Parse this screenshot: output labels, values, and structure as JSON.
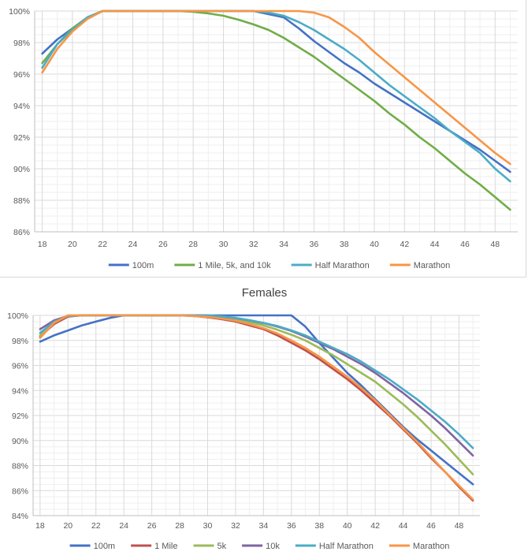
{
  "chart_data": [
    {
      "type": "line",
      "title": "",
      "xlabel": "",
      "ylabel": "",
      "x_ticks": [
        "18",
        "20",
        "22",
        "24",
        "26",
        "28",
        "30",
        "32",
        "34",
        "36",
        "38",
        "40",
        "42",
        "44",
        "46",
        "48"
      ],
      "y_ticks": [
        "100%",
        "98%",
        "96%",
        "94%",
        "92%",
        "90%",
        "88%",
        "86%"
      ],
      "xlim": [
        17.5,
        49.5
      ],
      "ylim": [
        86,
        100
      ],
      "grid": true,
      "legend_position": "bottom",
      "series": [
        {
          "name": "100m",
          "color": "#4472c4",
          "x": [
            18,
            19,
            20,
            21,
            22,
            23,
            24,
            26,
            28,
            30,
            32,
            33,
            34,
            35,
            36,
            37,
            38,
            39,
            40,
            41,
            42,
            43,
            44,
            45,
            46,
            47,
            48,
            49
          ],
          "y": [
            97.3,
            98.2,
            98.9,
            99.6,
            100,
            100,
            100,
            100,
            100,
            100,
            100,
            99.8,
            99.6,
            98.9,
            98.1,
            97.4,
            96.7,
            96.1,
            95.4,
            94.8,
            94.2,
            93.6,
            93.0,
            92.4,
            91.8,
            91.2,
            90.5,
            89.8
          ]
        },
        {
          "name": "1 Mile, 5k, and 10k",
          "color": "#70ad47",
          "x": [
            18,
            19,
            20,
            21,
            22,
            23,
            24,
            26,
            27,
            28,
            29,
            30,
            31,
            32,
            33,
            34,
            35,
            36,
            37,
            38,
            39,
            40,
            41,
            42,
            43,
            44,
            45,
            46,
            47,
            48,
            49
          ],
          "y": [
            96.7,
            97.9,
            98.9,
            99.6,
            100,
            100,
            100,
            100,
            100,
            99.95,
            99.85,
            99.7,
            99.45,
            99.15,
            98.8,
            98.3,
            97.7,
            97.1,
            96.4,
            95.7,
            95.0,
            94.3,
            93.5,
            92.8,
            92.0,
            91.3,
            90.5,
            89.7,
            89.0,
            88.2,
            87.4
          ]
        },
        {
          "name": "Half Marathon",
          "color": "#4bacc6",
          "x": [
            18,
            19,
            20,
            21,
            22,
            23,
            24,
            26,
            28,
            30,
            32,
            33,
            34,
            35,
            36,
            37,
            38,
            39,
            40,
            41,
            42,
            43,
            44,
            45,
            46,
            47,
            48,
            49
          ],
          "y": [
            96.4,
            97.9,
            98.8,
            99.6,
            100,
            100,
            100,
            100,
            100,
            100,
            100,
            99.9,
            99.7,
            99.3,
            98.8,
            98.2,
            97.6,
            96.9,
            96.1,
            95.3,
            94.6,
            93.9,
            93.2,
            92.4,
            91.7,
            91.0,
            90.0,
            89.2
          ]
        },
        {
          "name": "Marathon",
          "color": "#f79646",
          "x": [
            18,
            19,
            20,
            21,
            22,
            23,
            24,
            26,
            28,
            30,
            32,
            34,
            35,
            36,
            37,
            38,
            39,
            40,
            41,
            42,
            43,
            44,
            45,
            46,
            47,
            48,
            49
          ],
          "y": [
            96.1,
            97.6,
            98.7,
            99.5,
            100,
            100,
            100,
            100,
            100,
            100,
            100,
            100,
            100,
            99.9,
            99.6,
            99.0,
            98.3,
            97.4,
            96.6,
            95.8,
            95.0,
            94.2,
            93.4,
            92.6,
            91.8,
            91.0,
            90.3
          ]
        }
      ]
    },
    {
      "type": "line",
      "title": "Females",
      "xlabel": "",
      "ylabel": "",
      "x_ticks": [
        "18",
        "20",
        "22",
        "24",
        "26",
        "28",
        "30",
        "32",
        "34",
        "36",
        "38",
        "40",
        "42",
        "44",
        "46",
        "48"
      ],
      "y_ticks": [
        "100%",
        "98%",
        "96%",
        "94%",
        "92%",
        "90%",
        "88%",
        "86%",
        "84%"
      ],
      "xlim": [
        17.5,
        49.5
      ],
      "ylim": [
        84,
        100
      ],
      "grid": true,
      "legend_position": "bottom",
      "series": [
        {
          "name": "100m",
          "color": "#4472c4",
          "x": [
            18,
            19,
            20,
            21,
            22,
            23,
            24,
            26,
            28,
            30,
            32,
            34,
            35,
            36,
            37,
            38,
            39,
            40,
            41,
            42,
            43,
            44,
            45,
            46,
            47,
            48,
            49
          ],
          "y": [
            97.9,
            98.4,
            98.8,
            99.2,
            99.5,
            99.8,
            100,
            100,
            100,
            100,
            100,
            100,
            100,
            100,
            99.1,
            97.8,
            96.6,
            95.4,
            94.4,
            93.3,
            92.2,
            91.1,
            90.1,
            89.2,
            88.3,
            87.4,
            86.5
          ]
        },
        {
          "name": "1 Mile",
          "color": "#c0504d",
          "x": [
            18,
            19,
            20,
            21,
            22,
            24,
            26,
            28,
            29,
            30,
            31,
            32,
            33,
            34,
            35,
            36,
            37,
            38,
            39,
            40,
            41,
            42,
            43,
            44,
            45,
            46,
            47,
            48,
            49
          ],
          "y": [
            98.3,
            99.3,
            99.9,
            100,
            100,
            100,
            100,
            100,
            99.95,
            99.85,
            99.7,
            99.5,
            99.2,
            98.9,
            98.4,
            97.8,
            97.2,
            96.5,
            95.7,
            94.9,
            94.0,
            93.0,
            92.0,
            90.9,
            89.8,
            88.6,
            87.5,
            86.3,
            85.2
          ]
        },
        {
          "name": "5k",
          "color": "#9bbb59",
          "x": [
            18,
            19,
            20,
            21,
            22,
            24,
            26,
            28,
            29,
            30,
            31,
            32,
            33,
            34,
            35,
            36,
            37,
            38,
            39,
            40,
            41,
            42,
            43,
            44,
            45,
            46,
            47,
            48,
            49
          ],
          "y": [
            98.4,
            99.4,
            100,
            100,
            100,
            100,
            100,
            100,
            99.97,
            99.92,
            99.82,
            99.65,
            99.45,
            99.2,
            98.85,
            98.45,
            98.0,
            97.4,
            96.8,
            96.1,
            95.4,
            94.7,
            93.8,
            92.9,
            91.9,
            90.8,
            89.7,
            88.5,
            87.3
          ]
        },
        {
          "name": "10k",
          "color": "#8064a2",
          "x": [
            18,
            19,
            20,
            21,
            22,
            24,
            26,
            28,
            30,
            31,
            32,
            33,
            34,
            35,
            36,
            37,
            38,
            39,
            40,
            41,
            42,
            43,
            44,
            45,
            46,
            47,
            48,
            49
          ],
          "y": [
            98.9,
            99.6,
            99.95,
            100,
            100,
            100,
            100,
            100,
            100,
            99.9,
            99.78,
            99.6,
            99.38,
            99.1,
            98.75,
            98.3,
            97.8,
            97.3,
            96.7,
            96.1,
            95.4,
            94.6,
            93.8,
            92.9,
            92.0,
            91.0,
            89.9,
            88.8
          ]
        },
        {
          "name": "Half Marathon",
          "color": "#4bacc6",
          "x": [
            18,
            19,
            20,
            21,
            22,
            24,
            26,
            28,
            30,
            31,
            32,
            33,
            34,
            35,
            36,
            37,
            38,
            39,
            40,
            41,
            42,
            43,
            44,
            45,
            46,
            47,
            48,
            49
          ],
          "y": [
            98.6,
            99.5,
            99.95,
            100,
            100,
            100,
            100,
            100,
            100,
            99.92,
            99.8,
            99.62,
            99.4,
            99.15,
            98.8,
            98.4,
            97.9,
            97.4,
            96.9,
            96.3,
            95.6,
            94.9,
            94.1,
            93.3,
            92.4,
            91.5,
            90.5,
            89.4
          ]
        },
        {
          "name": "Marathon",
          "color": "#f79646",
          "x": [
            18,
            19,
            20,
            21,
            22,
            24,
            26,
            28,
            29,
            30,
            31,
            32,
            33,
            34,
            35,
            36,
            37,
            38,
            39,
            40,
            41,
            42,
            43,
            44,
            45,
            46,
            47,
            48,
            49
          ],
          "y": [
            98.2,
            99.4,
            100,
            100,
            100,
            100,
            100,
            100,
            99.95,
            99.88,
            99.75,
            99.58,
            99.3,
            98.98,
            98.55,
            98.0,
            97.4,
            96.7,
            95.9,
            95.1,
            94.2,
            93.2,
            92.1,
            91.0,
            89.9,
            88.7,
            87.5,
            86.4,
            85.3
          ]
        }
      ]
    }
  ]
}
